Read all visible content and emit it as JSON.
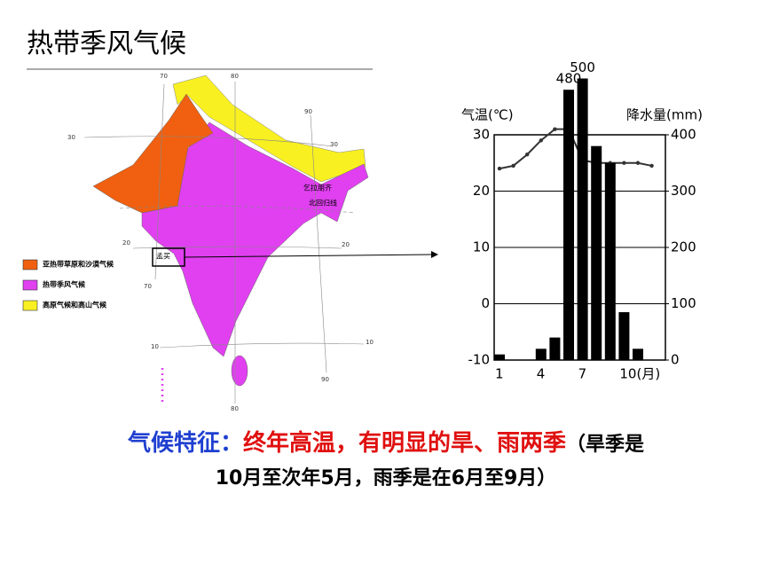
{
  "title": "热带季风气候",
  "map": {
    "legend": [
      {
        "label": "亚热带草原和沙漠气候",
        "color": "#f06010"
      },
      {
        "label": "热带季风气候",
        "color": "#e040f0"
      },
      {
        "label": "高原气候和高山气候",
        "color": "#f8f020"
      }
    ],
    "grid_labels": [
      "70",
      "80",
      "90",
      "30",
      "30",
      "20",
      "20",
      "70",
      "10",
      "10",
      "90",
      "80"
    ],
    "place_labels": [
      "孟买",
      "乞拉朋齐",
      "北回归线"
    ]
  },
  "chart_data": {
    "type": "combo",
    "y_label": "气温(℃)",
    "y2_label": "降水量(mm)",
    "categories": [
      "1",
      null,
      null,
      "4",
      null,
      null,
      "7",
      null,
      null,
      "10(月)",
      null,
      null
    ],
    "series": [
      {
        "type": "line",
        "color": "#333333",
        "axis": "y",
        "values": [
          24,
          24.5,
          26.5,
          29,
          31,
          31,
          25.5,
          25,
          25,
          25,
          25,
          24.5
        ]
      },
      {
        "type": "bar",
        "color": "#000000",
        "axis": "y2",
        "values": [
          10,
          0,
          0,
          20,
          40,
          480,
          500,
          380,
          350,
          85,
          20,
          0
        ],
        "value_labels": [
          null,
          null,
          null,
          null,
          null,
          "480",
          "500",
          null,
          null,
          null,
          null,
          null
        ]
      }
    ],
    "ylim": [
      -10,
      30
    ],
    "yticks": [
      -10,
      0,
      10,
      20,
      30
    ],
    "y2lim": [
      0,
      400
    ],
    "y2ticks": [
      0,
      100,
      200,
      300,
      400
    ],
    "grid": true
  },
  "caption": {
    "label": "气候特征：",
    "highlight": "终年高温，有明显的旱、雨两季",
    "note_1": "（旱季是",
    "note_2": "10月至次年5月，雨季是在6月至9月）"
  }
}
